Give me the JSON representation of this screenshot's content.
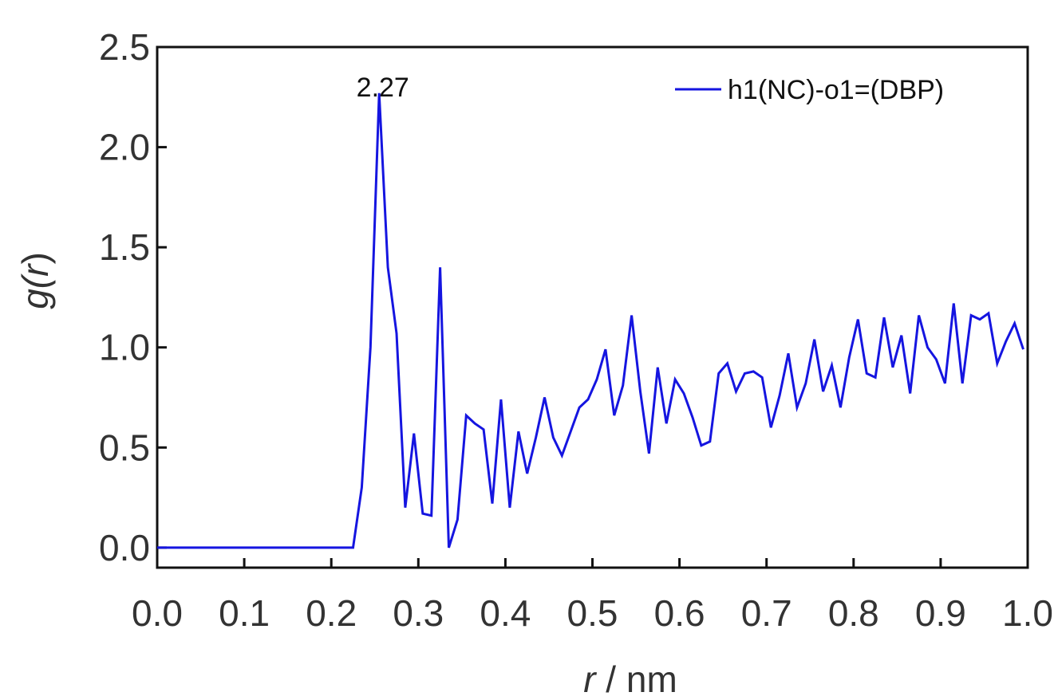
{
  "chart_data": {
    "type": "line",
    "xlabel": {
      "var": "r",
      "unit": " / nm"
    },
    "ylabel": {
      "fn": "g(",
      "var": "r",
      "close": ")"
    },
    "xlim": [
      0,
      1.0
    ],
    "ylim": [
      -0.1,
      2.5
    ],
    "xticks": [
      "0.0",
      "0.1",
      "0.2",
      "0.3",
      "0.4",
      "0.5",
      "0.6",
      "0.7",
      "0.8",
      "0.9",
      "1.0"
    ],
    "yticks": [
      "0.0",
      "0.5",
      "1.0",
      "1.5",
      "2.0",
      "2.5"
    ],
    "grid": false,
    "legend_position": "top-right",
    "annotations": [
      {
        "text": "2.27",
        "x": 0.25,
        "y": 2.27
      }
    ],
    "series": [
      {
        "name": "h1(NC)-o1=(DBP)",
        "color": "#1515e0",
        "x": [
          0,
          0.225,
          0.235,
          0.245,
          0.255,
          0.265,
          0.275,
          0.285,
          0.295,
          0.305,
          0.315,
          0.325,
          0.335,
          0.345,
          0.355,
          0.365,
          0.375,
          0.385,
          0.395,
          0.405,
          0.415,
          0.425,
          0.435,
          0.445,
          0.455,
          0.465,
          0.475,
          0.485,
          0.495,
          0.505,
          0.515,
          0.525,
          0.535,
          0.545,
          0.555,
          0.565,
          0.575,
          0.585,
          0.595,
          0.605,
          0.615,
          0.625,
          0.635,
          0.645,
          0.655,
          0.665,
          0.675,
          0.685,
          0.695,
          0.705,
          0.715,
          0.725,
          0.735,
          0.745,
          0.755,
          0.765,
          0.775,
          0.785,
          0.795,
          0.805,
          0.815,
          0.825,
          0.835,
          0.845,
          0.855,
          0.865,
          0.875,
          0.885,
          0.895,
          0.905,
          0.915,
          0.925,
          0.935,
          0.945,
          0.955,
          0.965,
          0.975,
          0.985,
          0.995
        ],
        "y": [
          0,
          0,
          0.3,
          1.0,
          2.27,
          1.4,
          1.07,
          0.2,
          0.57,
          0.17,
          0.16,
          1.4,
          0.0,
          0.14,
          0.66,
          0.62,
          0.59,
          0.22,
          0.74,
          0.2,
          0.58,
          0.37,
          0.55,
          0.75,
          0.55,
          0.46,
          0.58,
          0.7,
          0.74,
          0.84,
          0.99,
          0.66,
          0.81,
          1.16,
          0.78,
          0.47,
          0.9,
          0.62,
          0.84,
          0.77,
          0.65,
          0.51,
          0.53,
          0.87,
          0.92,
          0.78,
          0.87,
          0.88,
          0.85,
          0.6,
          0.76,
          0.97,
          0.7,
          0.82,
          1.04,
          0.78,
          0.91,
          0.7,
          0.95,
          1.14,
          0.87,
          0.85,
          1.15,
          0.9,
          1.06,
          0.77,
          1.16,
          1.0,
          0.94,
          0.82,
          1.22,
          0.82,
          1.16,
          1.14,
          1.17,
          0.92,
          1.03,
          1.12,
          0.99
        ]
      }
    ]
  }
}
